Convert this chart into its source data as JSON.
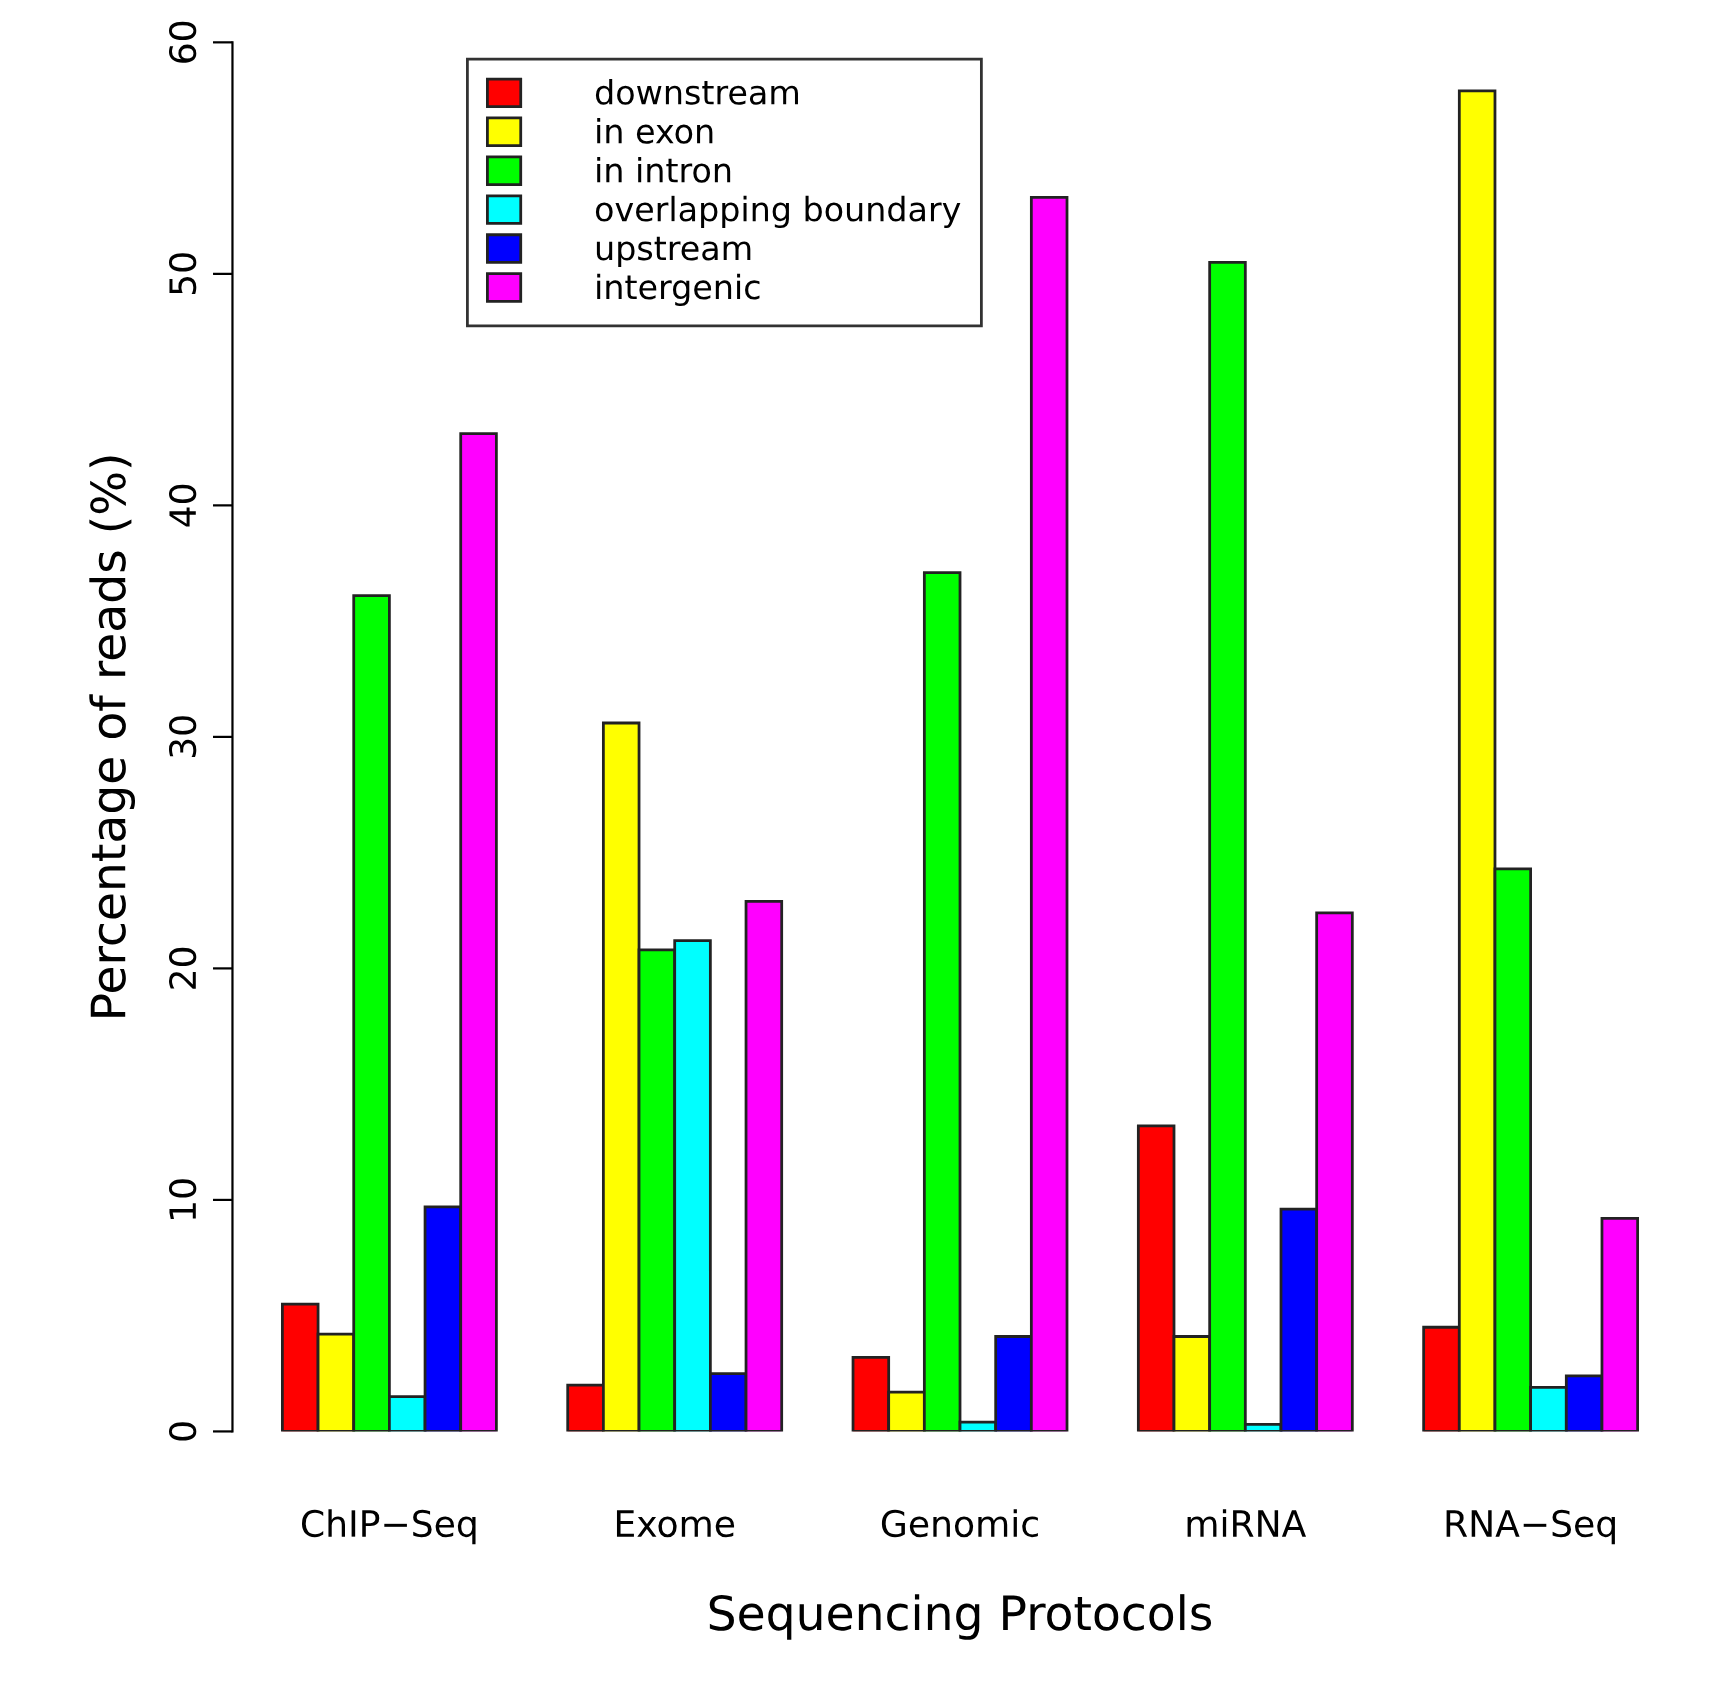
{
  "chart_data": {
    "type": "bar",
    "xlabel": "Sequencing Protocols",
    "ylabel": "Percentage of reads (%)",
    "categories": [
      "ChIP−Seq",
      "Exome",
      "Genomic",
      "miRNA",
      "RNA−Seq"
    ],
    "series": [
      {
        "name": "downstream",
        "color": "#ff0000",
        "values": [
          5.5,
          2.0,
          3.2,
          13.2,
          4.5
        ]
      },
      {
        "name": "in exon",
        "color": "#ffff00",
        "values": [
          4.2,
          30.6,
          1.7,
          4.1,
          57.9
        ]
      },
      {
        "name": "in intron",
        "color": "#00ff00",
        "values": [
          36.1,
          20.8,
          37.1,
          50.5,
          24.3
        ]
      },
      {
        "name": "overlapping boundary",
        "color": "#00ffff",
        "values": [
          1.5,
          21.2,
          0.4,
          0.3,
          1.9
        ]
      },
      {
        "name": "upstream",
        "color": "#0000ff",
        "values": [
          9.7,
          2.5,
          4.1,
          9.6,
          2.4
        ]
      },
      {
        "name": "intergenic",
        "color": "#ff00ff",
        "values": [
          43.1,
          22.9,
          53.3,
          22.4,
          9.2
        ]
      }
    ],
    "ylim": [
      0,
      60
    ],
    "yticks": [
      0,
      10,
      20,
      30,
      40,
      50,
      60
    ],
    "grid": false,
    "legend": "top left"
  }
}
